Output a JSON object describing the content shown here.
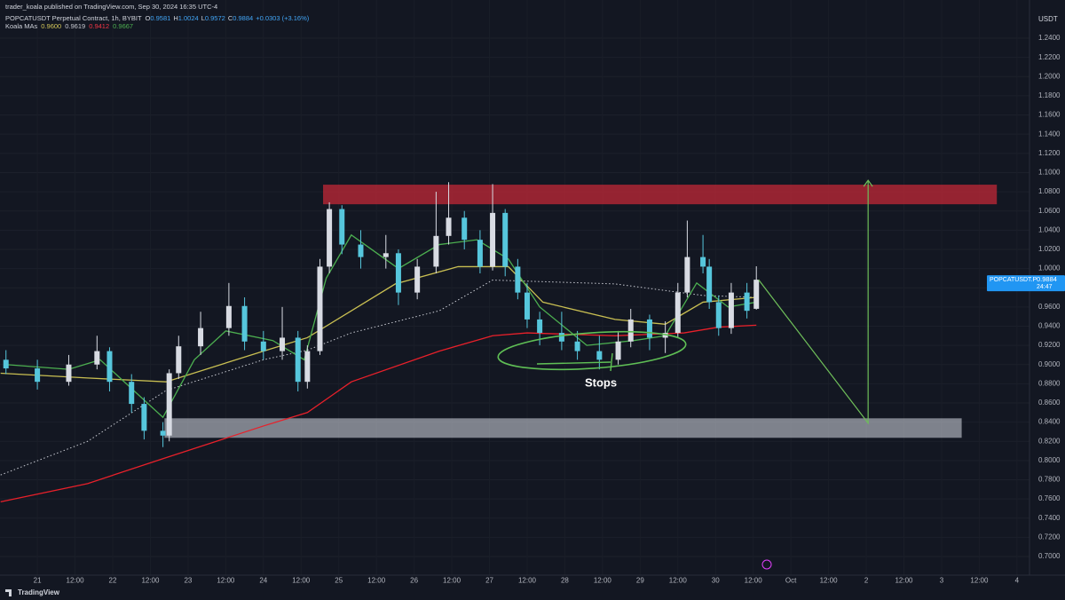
{
  "header": {
    "published": "trader_koala published on TradingView.com, Sep 30, 2024 16:35 UTC-4",
    "brand": "TradingView"
  },
  "chart_data": {
    "type": "candlestick",
    "title": "POPCATUSDT Perpetual Contract, 1h, BYBIT",
    "quote": [
      {
        "key": "O",
        "text": "0.9581"
      },
      {
        "key": "H",
        "text": "1.0024"
      },
      {
        "key": "L",
        "text": "0.9572"
      },
      {
        "key": "C",
        "text": "0.9884"
      }
    ],
    "change": "+0.0303 (+3.16%)",
    "indicator": {
      "name": "Koala MAs",
      "values": [
        {
          "text": "0.9600",
          "color": "#d4c75a"
        },
        {
          "text": "0.9619",
          "color": "#c8cad2"
        },
        {
          "text": "0.9412",
          "color": "#f23645"
        },
        {
          "text": "0.9667",
          "color": "#4caf50"
        }
      ]
    },
    "unit": "USDT",
    "up_color": "#d8dbe3",
    "down_color": "#56c6dc",
    "candles": [
      [
        -10,
        0.905,
        0.915,
        0.89,
        0.896
      ],
      [
        0,
        0.896,
        0.905,
        0.874,
        0.882
      ],
      [
        10,
        0.882,
        0.91,
        0.878,
        0.9
      ],
      [
        19,
        0.9,
        0.93,
        0.895,
        0.914
      ],
      [
        23,
        0.914,
        0.918,
        0.872,
        0.882
      ],
      [
        30,
        0.882,
        0.89,
        0.85,
        0.859
      ],
      [
        34,
        0.859,
        0.866,
        0.822,
        0.831
      ],
      [
        40,
        0.831,
        0.84,
        0.814,
        0.826
      ],
      [
        42,
        0.826,
        0.895,
        0.82,
        0.891
      ],
      [
        45,
        0.891,
        0.93,
        0.885,
        0.919
      ],
      [
        52,
        0.919,
        0.955,
        0.91,
        0.938
      ],
      [
        61,
        0.938,
        0.985,
        0.93,
        0.961
      ],
      [
        66,
        0.961,
        0.97,
        0.915,
        0.924
      ],
      [
        72,
        0.924,
        0.935,
        0.905,
        0.914
      ],
      [
        78,
        0.914,
        0.96,
        0.905,
        0.928
      ],
      [
        83,
        0.928,
        0.935,
        0.872,
        0.882
      ],
      [
        86,
        0.882,
        0.92,
        0.875,
        0.914
      ],
      [
        90,
        0.914,
        1.01,
        0.91,
        1.002
      ],
      [
        93,
        1.002,
        1.069,
        0.995,
        1.062
      ],
      [
        97,
        1.062,
        1.066,
        1.015,
        1.025
      ],
      [
        103,
        1.025,
        1.04,
        1.0,
        1.012
      ],
      [
        111,
        1.012,
        1.035,
        1.0,
        1.016
      ],
      [
        115,
        1.016,
        1.02,
        0.962,
        0.975
      ],
      [
        121,
        0.975,
        1.01,
        0.968,
        1.002
      ],
      [
        127,
        1.002,
        1.08,
        0.995,
        1.034
      ],
      [
        131,
        1.034,
        1.09,
        1.025,
        1.053
      ],
      [
        136,
        1.053,
        1.06,
        1.02,
        1.03
      ],
      [
        141,
        1.03,
        1.04,
        0.995,
        1.002
      ],
      [
        145,
        1.002,
        1.088,
        0.998,
        1.058
      ],
      [
        149,
        1.058,
        1.062,
        0.992,
        1.002
      ],
      [
        153,
        1.002,
        1.01,
        0.968,
        0.975
      ],
      [
        156,
        0.975,
        0.985,
        0.938,
        0.947
      ],
      [
        160,
        0.947,
        0.955,
        0.92,
        0.933
      ],
      [
        167,
        0.933,
        0.955,
        0.915,
        0.924
      ],
      [
        172,
        0.924,
        0.935,
        0.905,
        0.914
      ],
      [
        179,
        0.914,
        0.93,
        0.895,
        0.905
      ],
      [
        185,
        0.905,
        0.935,
        0.9,
        0.924
      ],
      [
        189,
        0.924,
        0.958,
        0.918,
        0.947
      ],
      [
        195,
        0.947,
        0.952,
        0.915,
        0.928
      ],
      [
        200,
        0.928,
        0.945,
        0.912,
        0.933
      ],
      [
        204,
        0.933,
        0.985,
        0.928,
        0.975
      ],
      [
        207,
        0.975,
        1.05,
        0.97,
        1.012
      ],
      [
        212,
        1.012,
        1.035,
        0.995,
        1.002
      ],
      [
        214,
        1.002,
        1.01,
        0.958,
        0.965
      ],
      [
        217,
        0.965,
        0.972,
        0.93,
        0.938
      ],
      [
        221,
        0.938,
        0.985,
        0.932,
        0.975
      ],
      [
        226,
        0.975,
        0.985,
        0.948,
        0.956
      ],
      [
        229,
        0.9581,
        1.0024,
        0.9572,
        0.9884
      ]
    ],
    "lines": [
      {
        "color": "#c8cad2",
        "style": "dotted",
        "x": [
          -11.7,
          16,
          41,
          72,
          86,
          100,
          128,
          145,
          184,
          212,
          229
        ],
        "values": [
          0.785,
          0.82,
          0.873,
          0.905,
          0.915,
          0.933,
          0.956,
          0.988,
          0.984,
          0.972,
          0.97
        ]
      },
      {
        "color": "#e8202a",
        "style": "solid",
        "x": [
          -11.7,
          16,
          41,
          72,
          86,
          100,
          128,
          145,
          156,
          184,
          206,
          217,
          229
        ],
        "values": [
          0.757,
          0.776,
          0.803,
          0.836,
          0.85,
          0.882,
          0.914,
          0.93,
          0.933,
          0.93,
          0.933,
          0.939,
          0.941
        ]
      },
      {
        "color": "#c9bf52",
        "style": "solid",
        "x": [
          -11.7,
          16,
          41,
          72,
          86,
          100,
          114,
          134,
          150,
          161,
          184,
          200,
          212,
          229
        ],
        "values": [
          0.891,
          0.886,
          0.882,
          0.914,
          0.928,
          0.956,
          0.984,
          1.002,
          1.002,
          0.965,
          0.947,
          0.942,
          0.965,
          0.97
        ]
      },
      {
        "color": "#4caf50",
        "style": "solid",
        "x": [
          -10,
          10,
          20,
          30,
          40,
          50,
          60,
          75,
          85,
          92,
          100,
          115,
          128,
          140,
          150,
          160,
          175,
          190,
          200,
          210,
          220,
          229
        ],
        "values": [
          0.9,
          0.895,
          0.905,
          0.875,
          0.845,
          0.905,
          0.935,
          0.925,
          0.905,
          0.99,
          1.035,
          1.0,
          1.025,
          1.03,
          1.01,
          0.96,
          0.92,
          0.925,
          0.93,
          0.985,
          0.96,
          0.965
        ]
      }
    ],
    "zones": [
      {
        "x": [
          91,
          305.6
        ],
        "y": [
          1.067,
          1.0874
        ],
        "color": "rgba(200,40,55,0.72)"
      },
      {
        "x": [
          40.5,
          294.4
        ],
        "y": [
          0.8237,
          0.844
        ],
        "color": "rgba(215,218,228,0.55)"
      }
    ],
    "projection": {
      "color": "#6fbf5a",
      "x": [
        229.7,
        264.6,
        264.6
      ],
      "values": [
        0.9884,
        0.839,
        1.092
      ]
    },
    "annotation": "Stops",
    "last_price": {
      "symbol": "POPCATUSDT.P",
      "value": 0.9884,
      "label": "0.9884",
      "countdown": "24:47"
    },
    "xlim": [
      -11.9,
      316
    ],
    "ylim": [
      0.6806,
      1.2798
    ],
    "yticks": [
      {
        "value": 0.7,
        "label": "0.7000"
      },
      {
        "value": 0.72,
        "label": "0.7200"
      },
      {
        "value": 0.74,
        "label": "0.7400"
      },
      {
        "value": 0.76,
        "label": "0.7600"
      },
      {
        "value": 0.78,
        "label": "0.7800"
      },
      {
        "value": 0.8,
        "label": "0.8000"
      },
      {
        "value": 0.82,
        "label": "0.8200"
      },
      {
        "value": 0.84,
        "label": "0.8400"
      },
      {
        "value": 0.86,
        "label": "0.8600"
      },
      {
        "value": 0.88,
        "label": "0.8800"
      },
      {
        "value": 0.9,
        "label": "0.9000"
      },
      {
        "value": 0.92,
        "label": "0.9200"
      },
      {
        "value": 0.94,
        "label": "0.9400"
      },
      {
        "value": 0.96,
        "label": "0.9600"
      },
      {
        "value": 0.98,
        "label": "0.9800"
      },
      {
        "value": 1.0,
        "label": "1.0000"
      },
      {
        "value": 1.02,
        "label": "1.0200"
      },
      {
        "value": 1.04,
        "label": "1.0400"
      },
      {
        "value": 1.06,
        "label": "1.0600"
      },
      {
        "value": 1.08,
        "label": "1.0800"
      },
      {
        "value": 1.1,
        "label": "1.1000"
      },
      {
        "value": 1.12,
        "label": "1.1200"
      },
      {
        "value": 1.14,
        "label": "1.1400"
      },
      {
        "value": 1.16,
        "label": "1.1600"
      },
      {
        "value": 1.18,
        "label": "1.1800"
      },
      {
        "value": 1.2,
        "label": "1.2000"
      },
      {
        "value": 1.22,
        "label": "1.2200"
      },
      {
        "value": 1.24,
        "label": "1.2400"
      }
    ],
    "xticks": [
      {
        "value": 0,
        "label": "21"
      },
      {
        "value": 12,
        "label": "12:00"
      },
      {
        "value": 24,
        "label": "22"
      },
      {
        "value": 36,
        "label": "12:00"
      },
      {
        "value": 48,
        "label": "23"
      },
      {
        "value": 60,
        "label": "12:00"
      },
      {
        "value": 72,
        "label": "24"
      },
      {
        "value": 84,
        "label": "12:00"
      },
      {
        "value": 96,
        "label": "25"
      },
      {
        "value": 108,
        "label": "12:00"
      },
      {
        "value": 120,
        "label": "26"
      },
      {
        "value": 132,
        "label": "12:00"
      },
      {
        "value": 144,
        "label": "27"
      },
      {
        "value": 156,
        "label": "12:00"
      },
      {
        "value": 168,
        "label": "28"
      },
      {
        "value": 180,
        "label": "12:00"
      },
      {
        "value": 192,
        "label": "29"
      },
      {
        "value": 204,
        "label": "12:00"
      },
      {
        "value": 216,
        "label": "30"
      },
      {
        "value": 228,
        "label": "12:00"
      },
      {
        "value": 240,
        "label": "Oct"
      },
      {
        "value": 252,
        "label": "12:00"
      },
      {
        "value": 264,
        "label": "2"
      },
      {
        "value": 276,
        "label": "12:00"
      },
      {
        "value": 288,
        "label": "3"
      },
      {
        "value": 300,
        "label": "12:00"
      },
      {
        "value": 312,
        "label": "4"
      }
    ],
    "grid": true
  }
}
